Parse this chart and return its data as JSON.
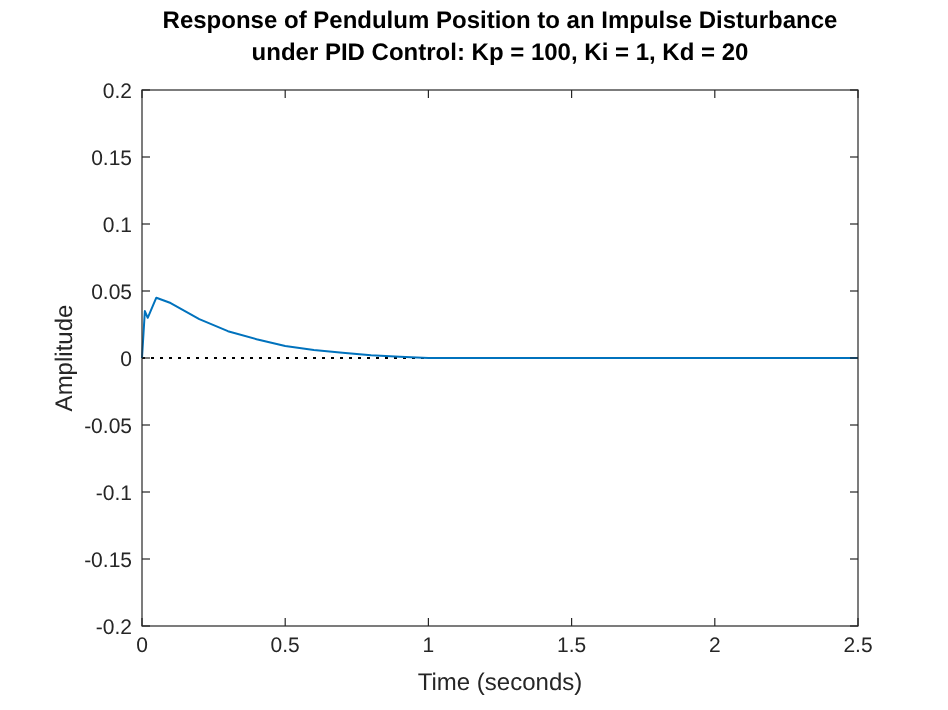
{
  "chart_data": {
    "type": "line",
    "title": "Response of Pendulum Position to an Impulse Disturbance\nunder PID Control: Kp = 100, Ki = 1, Kd = 20",
    "xlabel": "Time (seconds)",
    "ylabel": "Amplitude",
    "x": [
      0,
      0.01,
      0.02,
      0.05,
      0.1,
      0.15,
      0.2,
      0.3,
      0.4,
      0.5,
      0.6,
      0.7,
      0.8,
      0.9,
      1.0,
      1.5,
      2.0,
      2.5
    ],
    "series": [
      {
        "color": "#0072bd",
        "values": [
          0,
          0.035,
          0.03,
          0.045,
          0.041,
          0.035,
          0.029,
          0.02,
          0.014,
          0.009,
          0.006,
          0.004,
          0.002,
          0.001,
          0,
          0,
          0,
          0
        ]
      }
    ],
    "xlim": [
      0,
      2.5
    ],
    "xticks": [
      0,
      0.5,
      1,
      1.5,
      2,
      2.5
    ],
    "ylim": [
      -0.2,
      0.2
    ],
    "yticks": [
      -0.2,
      -0.15,
      -0.1,
      -0.05,
      0,
      0.05,
      0.1,
      0.15,
      0.2
    ],
    "ref_lines": [
      {
        "axis": "y",
        "value": 0,
        "color": "#000000",
        "line_style": "dotted"
      }
    ],
    "grid": false,
    "marker": "none",
    "line_style": "solid"
  }
}
